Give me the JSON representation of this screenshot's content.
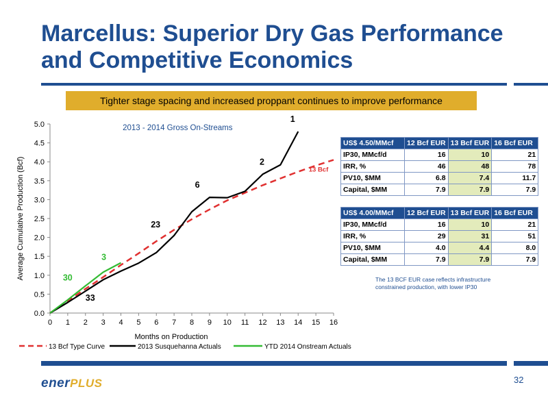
{
  "slide": {
    "title": "Marcellus:  Superior Dry Gas Performance and Competitive Economics",
    "banner": "Tighter stage spacing and increased proppant continues to improve performance",
    "note": "The 13 BCF EUR case reflects infrastructure constrained production, with lower IP30",
    "logo_part1": "ener",
    "logo_part2": "PLUS",
    "page_number": "32"
  },
  "colors": {
    "brand_blue": "#1f4e91",
    "banner_gold": "#e0ad2c",
    "type_curve": "#e03030",
    "susquehanna": "#000000",
    "ytd_2014": "#33bb33",
    "table_highlight": "#e3ebbb"
  },
  "chart_data": {
    "type": "line",
    "title": "2013 - 2014 Gross On-Streams",
    "xlabel": "Months on Production",
    "ylabel": "Average Cumulative Production (Bcf)",
    "xlim": [
      0,
      16
    ],
    "ylim": [
      0,
      5
    ],
    "xticks": [
      0,
      1,
      2,
      3,
      4,
      5,
      6,
      7,
      8,
      9,
      10,
      11,
      12,
      13,
      14,
      15,
      16
    ],
    "yticks": [
      0,
      0.5,
      1,
      1.5,
      2,
      2.5,
      3,
      3.5,
      4,
      4.5,
      5
    ],
    "ytick_labels": [
      "0.0",
      "0.5",
      "1.0",
      "1.5",
      "2.0",
      "2.5",
      "3.0",
      "3.5",
      "4.0",
      "4.5",
      "5.0"
    ],
    "grid": false,
    "legend_position": "bottom",
    "series": [
      {
        "name": "13 Bcf Type Curve",
        "style": "dashed",
        "color": "#e03030",
        "x": [
          0,
          1,
          2,
          3,
          4,
          5,
          6,
          7,
          8,
          9,
          10,
          11,
          12,
          13,
          14,
          15,
          16
        ],
        "y": [
          0,
          0.32,
          0.64,
          0.95,
          1.27,
          1.58,
          1.9,
          2.2,
          2.48,
          2.74,
          2.98,
          3.18,
          3.38,
          3.56,
          3.74,
          3.9,
          4.05
        ]
      },
      {
        "name": "2013 Susquehanna Actuals",
        "style": "solid",
        "color": "#000000",
        "x": [
          0,
          1,
          2,
          3,
          4,
          5,
          6,
          7,
          8,
          9,
          10,
          11,
          12,
          13,
          14
        ],
        "y": [
          0,
          0.28,
          0.58,
          0.88,
          1.11,
          1.32,
          1.6,
          2.05,
          2.68,
          3.06,
          3.05,
          3.22,
          3.67,
          3.92,
          4.8
        ]
      },
      {
        "name": "YTD 2014 Onstream Actuals",
        "style": "solid",
        "color": "#33bb33",
        "x": [
          0,
          1,
          2,
          3,
          4
        ],
        "y": [
          0,
          0.35,
          0.72,
          1.08,
          1.33
        ]
      }
    ],
    "annotations": [
      {
        "text": "1",
        "x": 14,
        "y": 4.8,
        "color": "#000000"
      },
      {
        "text": "2",
        "x": 12,
        "y": 3.67,
        "color": "#000000"
      },
      {
        "text": "6",
        "x": 8.7,
        "y": 3.06,
        "color": "#000000"
      },
      {
        "text": "23",
        "x": 6.5,
        "y": 2.05,
        "color": "#000000"
      },
      {
        "text": "33",
        "x": 2,
        "y": 0.58,
        "color": "#000000"
      },
      {
        "text": "3",
        "x": 3.5,
        "y": 1.33,
        "color": "#33bb33"
      },
      {
        "text": "30",
        "x": 1.5,
        "y": 0.72,
        "color": "#33bb33"
      },
      {
        "text": "13 Bcf",
        "x": 16,
        "y": 4.05,
        "color": "#e03030"
      }
    ]
  },
  "tables": [
    {
      "header": [
        "US$ 4.50/MMcf",
        "12 Bcf EUR",
        "13 Bcf  EUR",
        "16 Bcf  EUR"
      ],
      "rows": [
        [
          "IP30, MMcf/d",
          "16",
          "10",
          "21"
        ],
        [
          "IRR, %",
          "46",
          "48",
          "78"
        ],
        [
          "PV10, $MM",
          "6.8",
          "7.4",
          "11.7"
        ],
        [
          "Capital, $MM",
          "7.9",
          "7.9",
          "7.9"
        ]
      ]
    },
    {
      "header": [
        "US$ 4.00/MMcf",
        "12 Bcf EUR",
        "13 Bcf  EUR",
        "16 Bcf  EUR"
      ],
      "rows": [
        [
          "IP30, MMcf/d",
          "16",
          "10",
          "21"
        ],
        [
          "IRR, %",
          "29",
          "31",
          "51"
        ],
        [
          "PV10, $MM",
          "4.0",
          "4.4",
          "8.0"
        ],
        [
          "Capital, $MM",
          "7.9",
          "7.9",
          "7.9"
        ]
      ]
    }
  ]
}
